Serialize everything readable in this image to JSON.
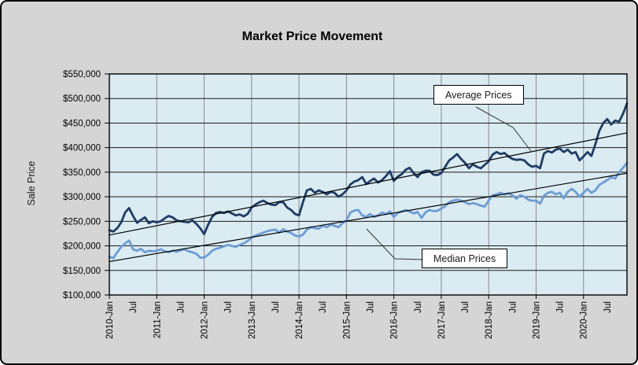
{
  "chart": {
    "title": "Market Price Movement",
    "y_axis_title": "Sale Price"
  },
  "chart_data": {
    "type": "line",
    "title": "Market Price Movement",
    "xlabel": "",
    "ylabel": "Sale Price",
    "ylim": [
      100000,
      550000
    ],
    "y_tick_interval": 50000,
    "y_tick_labels": [
      "$550,000",
      "$500,000",
      "$450,000",
      "$400,000",
      "$350,000",
      "$300,000",
      "$250,000",
      "$200,000",
      "$150,000",
      "$100,000"
    ],
    "x_range": {
      "start": "2010-Jan",
      "end": "2020-Dec",
      "interval": "monthly",
      "points": 132
    },
    "x_tick_labels": [
      "2010-Jan",
      "Jul",
      "2011-Jan",
      "Jul",
      "2012-Jan",
      "Jul",
      "2013-Jan",
      "Jul",
      "2014-Jan",
      "Jul",
      "2015-Jan",
      "Jul",
      "2016-Jan",
      "Jul",
      "2017-Jan",
      "Jul",
      "2018-Jan",
      "Jul",
      "2019-Jan",
      "Jul",
      "2020-Jan",
      "Jul"
    ],
    "grid": {
      "horizontal": "on-black",
      "vertical": "yearly-gray"
    },
    "legend_position": "callout-boxes-inside-plot",
    "colors": {
      "chart_background": "#D5D5D5",
      "plot_background": "#DAEBF2",
      "average_series": "#1F3B63",
      "median_series": "#6C9CD4",
      "trendline": "#000000",
      "border": "#000000"
    },
    "series": [
      {
        "name": "Average Prices",
        "color": "#1F3B63",
        "values": [
          232000,
          229000,
          236000,
          248000,
          268000,
          277000,
          261000,
          247000,
          253000,
          258000,
          246000,
          250000,
          248000,
          250000,
          256000,
          261000,
          258000,
          252000,
          250000,
          249000,
          248000,
          252000,
          245000,
          236000,
          224000,
          243000,
          259000,
          267000,
          269000,
          267000,
          270000,
          266000,
          262000,
          264000,
          260000,
          265000,
          278000,
          284000,
          289000,
          292000,
          287000,
          284000,
          283000,
          289000,
          289000,
          278000,
          273000,
          265000,
          262000,
          289000,
          313000,
          316000,
          308000,
          313000,
          310000,
          305000,
          310000,
          308000,
          300000,
          305000,
          313000,
          325000,
          331000,
          334000,
          340000,
          326000,
          332000,
          337000,
          329000,
          334000,
          342000,
          352000,
          332000,
          341000,
          346000,
          355000,
          359000,
          348000,
          340000,
          350000,
          353000,
          353000,
          345000,
          344000,
          348000,
          361000,
          374000,
          380000,
          387000,
          377000,
          369000,
          358000,
          366000,
          361000,
          358000,
          365000,
          372000,
          386000,
          391000,
          387000,
          389000,
          382000,
          377000,
          375000,
          376000,
          374000,
          366000,
          361000,
          363000,
          358000,
          388000,
          393000,
          390000,
          396000,
          398000,
          391000,
          396000,
          388000,
          391000,
          374000,
          382000,
          391000,
          383000,
          407000,
          434000,
          450000,
          458000,
          447000,
          455000,
          453000,
          469000,
          490000
        ]
      },
      {
        "name": "Median Prices",
        "color": "#6C9CD4",
        "values": [
          178000,
          175000,
          187000,
          198000,
          205000,
          211000,
          193000,
          190000,
          194000,
          187000,
          190000,
          189000,
          190000,
          193000,
          189000,
          187000,
          190000,
          188000,
          191000,
          193000,
          189000,
          187000,
          184000,
          176000,
          176000,
          182000,
          190000,
          194000,
          196000,
          199000,
          202000,
          200000,
          198000,
          202000,
          205000,
          210000,
          217000,
          221000,
          224000,
          227000,
          230000,
          232000,
          233000,
          227000,
          234000,
          229000,
          226000,
          221000,
          219000,
          223000,
          233000,
          238000,
          236000,
          235000,
          241000,
          238000,
          243000,
          241000,
          238000,
          246000,
          252000,
          268000,
          272000,
          273000,
          262000,
          259000,
          265000,
          259000,
          262000,
          268000,
          265000,
          270000,
          259000,
          267000,
          270000,
          273000,
          270000,
          266000,
          269000,
          257000,
          268000,
          273000,
          271000,
          271000,
          276000,
          281000,
          289000,
          292000,
          294000,
          292000,
          289000,
          285000,
          287000,
          285000,
          282000,
          280000,
          292000,
          303000,
          305000,
          308000,
          305000,
          307000,
          303000,
          296000,
          303000,
          300000,
          294000,
          292000,
          292000,
          286000,
          302000,
          308000,
          310000,
          305000,
          308000,
          297000,
          310000,
          316000,
          310000,
          300000,
          308000,
          316000,
          308000,
          313000,
          324000,
          329000,
          334000,
          340000,
          337000,
          350000,
          359000,
          369000
        ]
      }
    ],
    "trendlines": [
      {
        "series": "Average Prices",
        "start_value": 222000,
        "end_value": 430000,
        "color": "#000000"
      },
      {
        "series": "Median Prices",
        "start_value": 168000,
        "end_value": 348000,
        "color": "#000000"
      }
    ]
  }
}
